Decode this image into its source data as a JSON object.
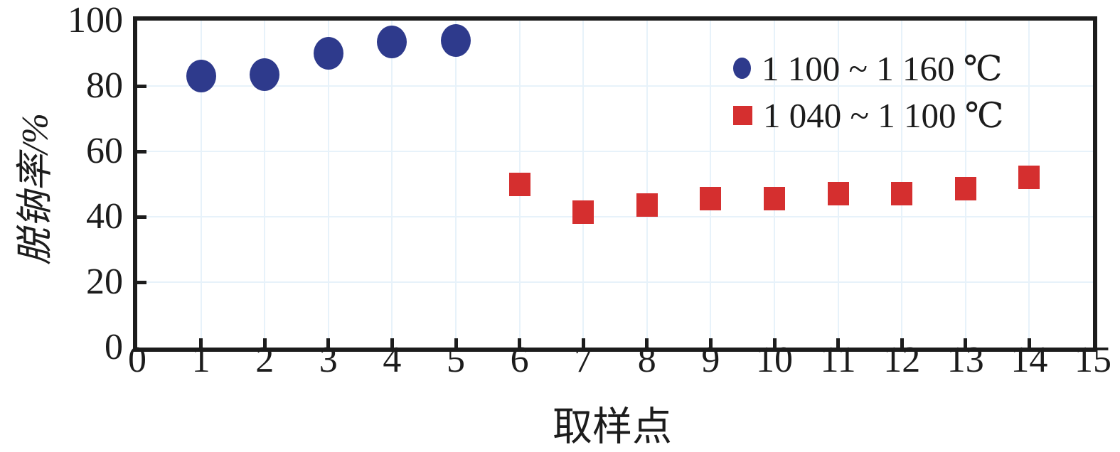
{
  "chart_data": {
    "type": "scatter",
    "title": "",
    "xlabel": "取样点",
    "ylabel": "脱钠率/%",
    "xlim": [
      0,
      15
    ],
    "ylim": [
      0,
      100
    ],
    "x_ticks": [
      0,
      1,
      2,
      3,
      4,
      5,
      6,
      7,
      8,
      9,
      10,
      11,
      12,
      13,
      14,
      15
    ],
    "y_ticks": [
      0,
      20,
      40,
      60,
      80,
      100
    ],
    "grid": "on",
    "legend_position": "top-right",
    "series": [
      {
        "name": "1 100 ~ 1 160 ℃",
        "marker": "circle",
        "color": "#2e3a8c",
        "x": [
          1,
          2,
          3,
          4,
          5
        ],
        "y": [
          83,
          83.5,
          90,
          93.5,
          94
        ]
      },
      {
        "name": "1 040 ~ 1 100 ℃",
        "marker": "square",
        "color": "#d52f2f",
        "x": [
          6,
          7,
          8,
          9,
          10,
          11,
          12,
          13,
          14
        ],
        "y": [
          50,
          41.5,
          43.5,
          45.5,
          45.5,
          47,
          47,
          48.5,
          52
        ]
      }
    ]
  },
  "colors": {
    "frame": "#1c1c1c",
    "grid": "#e7f2fa",
    "text": "#1c1c1c",
    "background": "#ffffff"
  }
}
